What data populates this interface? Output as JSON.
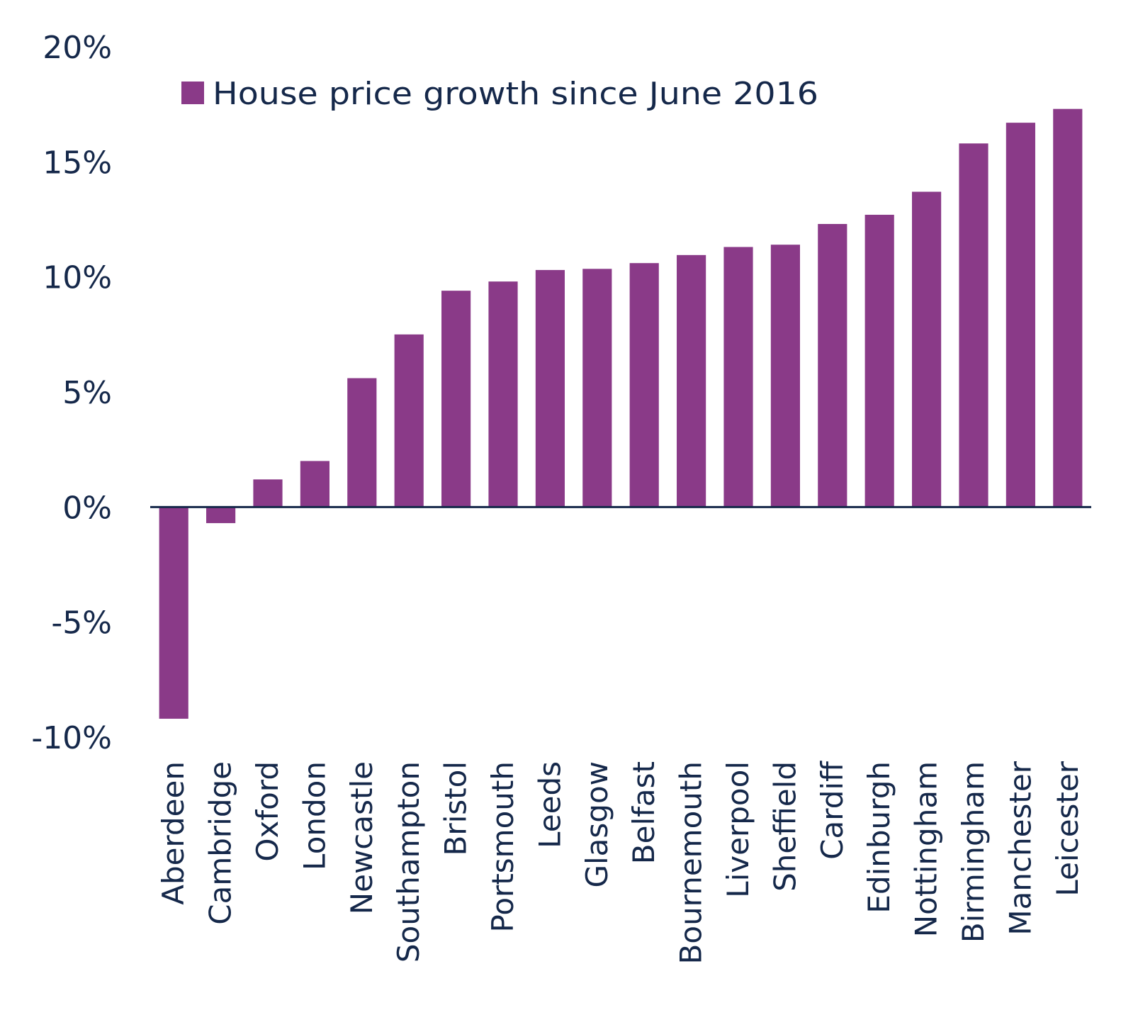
{
  "chart_data": {
    "type": "bar",
    "title": "",
    "xlabel": "",
    "ylabel": "",
    "ylim": [
      -10,
      20
    ],
    "yticks": [
      -10,
      -5,
      0,
      5,
      10,
      15,
      20
    ],
    "ytick_labels": [
      "-10%",
      "-5%",
      "0%",
      "5%",
      "10%",
      "15%",
      "20%"
    ],
    "grid": false,
    "legend": {
      "position": "top-left",
      "entries": [
        "House price growth since June 2016"
      ]
    },
    "colors": {
      "bar": "#8a3a88",
      "text": "#15284a",
      "axis": "#15284a"
    },
    "categories": [
      "Aberdeen",
      "Cambridge",
      "Oxford",
      "London",
      "Newcastle",
      "Southampton",
      "Bristol",
      "Portsmouth",
      "Leeds",
      "Glasgow",
      "Belfast",
      "Bournemouth",
      "Liverpool",
      "Sheffield",
      "Cardiff",
      "Edinburgh",
      "Nottingham",
      "Birmingham",
      "Manchester",
      "Leicester"
    ],
    "series": [
      {
        "name": "House price growth since June 2016",
        "values": [
          -9.2,
          -0.7,
          1.2,
          2.0,
          5.6,
          7.5,
          9.4,
          9.8,
          10.3,
          10.35,
          10.6,
          10.95,
          11.3,
          11.4,
          12.3,
          12.7,
          13.7,
          15.8,
          16.7,
          17.3
        ]
      }
    ]
  }
}
